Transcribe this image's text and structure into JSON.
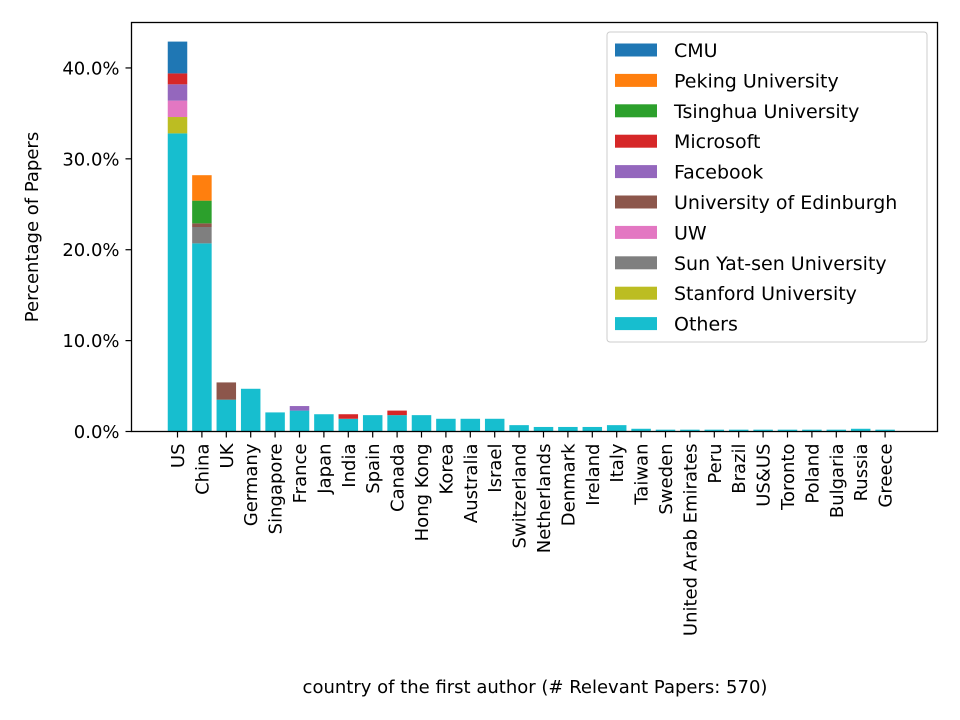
{
  "chart_data": {
    "type": "bar",
    "stacked": true,
    "xlabel": "country of the first author (# Relevant Papers: 570)",
    "ylabel": "Percentage of Papers",
    "ylim": [
      0,
      45
    ],
    "yticks": [
      0,
      10,
      20,
      30,
      40
    ],
    "ytick_labels": [
      "0.0%",
      "10.0%",
      "20.0%",
      "30.0%",
      "40.0%"
    ],
    "grid": false,
    "legend_position": "top-right",
    "categories": [
      "US",
      "China",
      "UK",
      "Germany",
      "Singapore",
      "France",
      "Japan",
      "India",
      "Spain",
      "Canada",
      "Hong Kong",
      "Korea",
      "Australia",
      "Israel",
      "Switzerland",
      "Netherlands",
      "Denmark",
      "Ireland",
      "Italy",
      "Taiwan",
      "Sweden",
      "United Arab Emirates",
      "Peru",
      "Brazil",
      "US&US",
      "Toronto",
      "Poland",
      "Bulgaria",
      "Russia",
      "Greece"
    ],
    "series": [
      {
        "name": "Others",
        "color": "#17becf",
        "values": [
          32.8,
          20.7,
          3.5,
          4.7,
          2.1,
          2.3,
          1.9,
          1.4,
          1.8,
          1.8,
          1.8,
          1.4,
          1.4,
          1.4,
          0.7,
          0.5,
          0.5,
          0.5,
          0.7,
          0.3,
          0.2,
          0.2,
          0.2,
          0.2,
          0.2,
          0.2,
          0.2,
          0.2,
          0.3,
          0.2
        ]
      },
      {
        "name": "Stanford University",
        "color": "#bcbd22",
        "values": [
          1.8,
          0,
          0,
          0,
          0,
          0,
          0,
          0,
          0,
          0,
          0,
          0,
          0,
          0,
          0,
          0,
          0,
          0,
          0,
          0,
          0,
          0,
          0,
          0,
          0,
          0,
          0,
          0,
          0,
          0
        ]
      },
      {
        "name": "Sun Yat-sen University",
        "color": "#7f7f7f",
        "values": [
          0,
          1.8,
          0,
          0,
          0,
          0,
          0,
          0,
          0,
          0,
          0,
          0,
          0,
          0,
          0,
          0,
          0,
          0,
          0,
          0,
          0,
          0,
          0,
          0,
          0,
          0,
          0,
          0,
          0,
          0
        ]
      },
      {
        "name": "UW",
        "color": "#e377c2",
        "values": [
          1.8,
          0,
          0,
          0,
          0,
          0,
          0,
          0,
          0,
          0,
          0,
          0,
          0,
          0,
          0,
          0,
          0,
          0,
          0,
          0,
          0,
          0,
          0,
          0,
          0,
          0,
          0,
          0,
          0,
          0
        ]
      },
      {
        "name": "University of Edinburgh",
        "color": "#8c564b",
        "values": [
          0,
          0.4,
          1.9,
          0,
          0,
          0,
          0,
          0,
          0,
          0,
          0,
          0,
          0,
          0,
          0,
          0,
          0,
          0,
          0,
          0,
          0,
          0,
          0,
          0,
          0,
          0,
          0,
          0,
          0,
          0
        ]
      },
      {
        "name": "Facebook",
        "color": "#9467bd",
        "values": [
          1.8,
          0,
          0,
          0,
          0,
          0.5,
          0,
          0,
          0,
          0,
          0,
          0,
          0,
          0,
          0,
          0,
          0,
          0,
          0,
          0,
          0,
          0,
          0,
          0,
          0,
          0,
          0,
          0,
          0,
          0
        ]
      },
      {
        "name": "Microsoft",
        "color": "#d62728",
        "values": [
          1.2,
          0,
          0,
          0,
          0,
          0,
          0,
          0.5,
          0,
          0.5,
          0,
          0,
          0,
          0,
          0,
          0,
          0,
          0,
          0,
          0,
          0,
          0,
          0,
          0,
          0,
          0,
          0,
          0,
          0,
          0
        ]
      },
      {
        "name": "Tsinghua University",
        "color": "#2ca02c",
        "values": [
          0,
          2.5,
          0,
          0,
          0,
          0,
          0,
          0,
          0,
          0,
          0,
          0,
          0,
          0,
          0,
          0,
          0,
          0,
          0,
          0,
          0,
          0,
          0,
          0,
          0,
          0,
          0,
          0,
          0,
          0
        ]
      },
      {
        "name": "Peking University",
        "color": "#ff7f0e",
        "values": [
          0,
          2.8,
          0,
          0,
          0,
          0,
          0,
          0,
          0,
          0,
          0,
          0,
          0,
          0,
          0,
          0,
          0,
          0,
          0,
          0,
          0,
          0,
          0,
          0,
          0,
          0,
          0,
          0,
          0,
          0
        ]
      },
      {
        "name": "CMU",
        "color": "#1f77b4",
        "values": [
          3.5,
          0,
          0,
          0,
          0,
          0,
          0,
          0,
          0,
          0,
          0,
          0,
          0,
          0,
          0,
          0,
          0,
          0,
          0,
          0,
          0,
          0,
          0,
          0,
          0,
          0,
          0,
          0,
          0,
          0
        ]
      }
    ],
    "legend_order": [
      "CMU",
      "Peking University",
      "Tsinghua University",
      "Microsoft",
      "Facebook",
      "University of Edinburgh",
      "UW",
      "Sun Yat-sen University",
      "Stanford University",
      "Others"
    ]
  }
}
